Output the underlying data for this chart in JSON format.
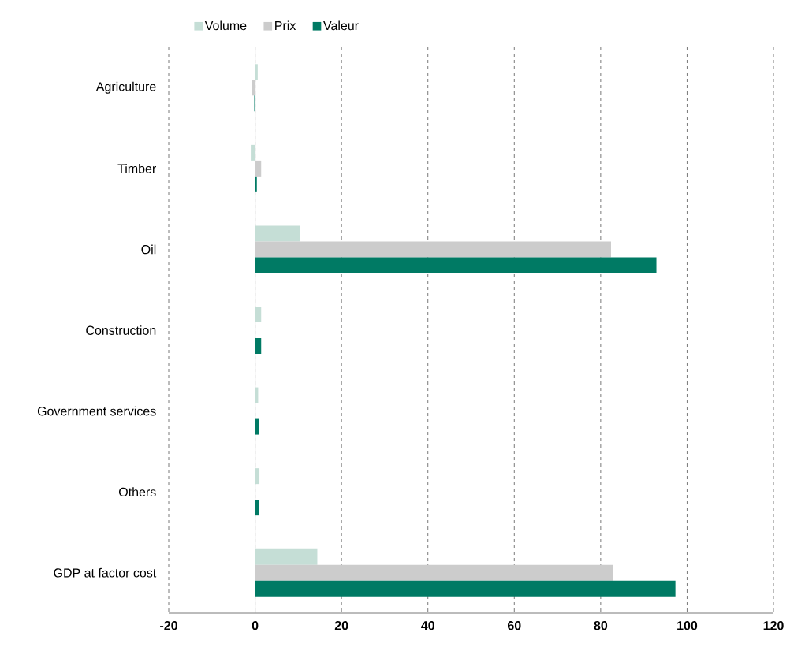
{
  "chart_data": {
    "type": "bar",
    "orientation": "horizontal",
    "categories": [
      "Agriculture",
      "Timber",
      "Oil",
      "Construction",
      "Government services",
      "Others",
      "GDP at factor cost"
    ],
    "series": [
      {
        "name": "Volume",
        "color": "#c5ded6",
        "values": [
          0.6,
          -1.0,
          10.3,
          1.4,
          0.7,
          1.0,
          14.4
        ]
      },
      {
        "name": "Prix",
        "color": "#cccccc",
        "values": [
          -0.8,
          1.4,
          82.4,
          null,
          null,
          null,
          82.8
        ]
      },
      {
        "name": "Valeur",
        "color": "#007a64",
        "values": [
          -0.2,
          0.4,
          92.9,
          1.4,
          0.9,
          0.9,
          97.3
        ]
      }
    ],
    "xlim": [
      -20,
      120
    ],
    "xticks": [
      -20,
      0,
      20,
      40,
      60,
      80,
      100,
      120
    ],
    "grid": "x",
    "legend": "top"
  }
}
